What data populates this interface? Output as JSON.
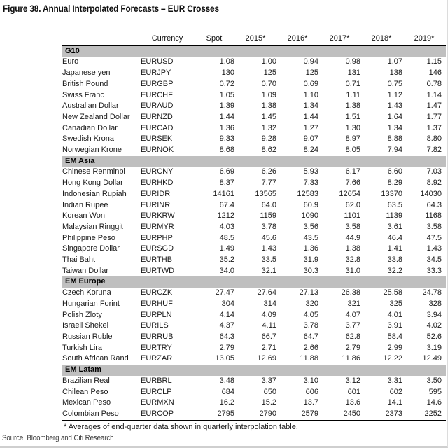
{
  "figure": {
    "title": "Figure 38. Annual Interpolated Forecasts – EUR Crosses",
    "footnote": "* Averages of end-quarter data shown in quarterly interpolation table.",
    "source": "Source: Bloomberg and Citi Research"
  },
  "colors": {
    "section_band": "#bfbfbf",
    "rule": "#000000",
    "text": "#1a1a1a",
    "page_edge": "#d4d4d4"
  },
  "table": {
    "columns": [
      "",
      "Currency",
      "Spot",
      "2015*",
      "2016*",
      "2017*",
      "2018*",
      "2019*"
    ],
    "sections": [
      {
        "label": "G10",
        "rows": [
          [
            "Euro",
            "EURUSD",
            "1.08",
            "1.00",
            "0.94",
            "0.98",
            "1.07",
            "1.15"
          ],
          [
            "Japanese yen",
            "EURJPY",
            "130",
            "125",
            "125",
            "131",
            "138",
            "146"
          ],
          [
            "British Pound",
            "EURGBP",
            "0.72",
            "0.70",
            "0.69",
            "0.71",
            "0.75",
            "0.78"
          ],
          [
            "Swiss Franc",
            "EURCHF",
            "1.05",
            "1.09",
            "1.10",
            "1.11",
            "1.12",
            "1.14"
          ],
          [
            "Australian Dollar",
            "EURAUD",
            "1.39",
            "1.38",
            "1.34",
            "1.38",
            "1.43",
            "1.47"
          ],
          [
            "New Zealand Dollar",
            "EURNZD",
            "1.44",
            "1.45",
            "1.44",
            "1.51",
            "1.64",
            "1.77"
          ],
          [
            "Canadian Dollar",
            "EURCAD",
            "1.36",
            "1.32",
            "1.27",
            "1.30",
            "1.34",
            "1.37"
          ],
          [
            "Swedish Krona",
            "EURSEK",
            "9.33",
            "9.28",
            "9.07",
            "8.97",
            "8.88",
            "8.80"
          ],
          [
            "Norwegian Krone",
            "EURNOK",
            "8.68",
            "8.62",
            "8.24",
            "8.05",
            "7.94",
            "7.82"
          ]
        ]
      },
      {
        "label": "EM Asia",
        "rows": [
          [
            "Chinese Renminbi",
            "EURCNY",
            "6.69",
            "6.26",
            "5.93",
            "6.17",
            "6.60",
            "7.03"
          ],
          [
            "Hong Kong Dollar",
            "EURHKD",
            "8.37",
            "7.77",
            "7.33",
            "7.66",
            "8.29",
            "8.92"
          ],
          [
            "Indonesian Rupiah",
            "EURIDR",
            "14161",
            "13565",
            "12583",
            "12654",
            "13370",
            "14030"
          ],
          [
            "Indian Rupee",
            "EURINR",
            "67.4",
            "64.0",
            "60.9",
            "62.0",
            "63.5",
            "64.3"
          ],
          [
            "Korean Won",
            "EURKRW",
            "1212",
            "1159",
            "1090",
            "1101",
            "1139",
            "1168"
          ],
          [
            "Malaysian Ringgit",
            "EURMYR",
            "4.03",
            "3.78",
            "3.56",
            "3.58",
            "3.61",
            "3.58"
          ],
          [
            "Philippine Peso",
            "EURPHP",
            "48.5",
            "45.6",
            "43.5",
            "44.9",
            "46.4",
            "47.5"
          ],
          [
            "Singapore Dollar",
            "EURSGD",
            "1.49",
            "1.43",
            "1.36",
            "1.38",
            "1.41",
            "1.43"
          ],
          [
            "Thai Baht",
            "EURTHB",
            "35.2",
            "33.5",
            "31.9",
            "32.8",
            "33.8",
            "34.5"
          ],
          [
            "Taiwan Dollar",
            "EURTWD",
            "34.0",
            "32.1",
            "30.3",
            "31.0",
            "32.2",
            "33.3"
          ]
        ]
      },
      {
        "label": "EM Europe",
        "rows": [
          [
            "Czech Koruna",
            "EURCZK",
            "27.47",
            "27.64",
            "27.13",
            "26.38",
            "25.58",
            "24.78"
          ],
          [
            "Hungarian Forint",
            "EURHUF",
            "304",
            "314",
            "320",
            "321",
            "325",
            "328"
          ],
          [
            "Polish Zloty",
            "EURPLN",
            "4.14",
            "4.09",
            "4.05",
            "4.07",
            "4.01",
            "3.94"
          ],
          [
            "Israeli Shekel",
            "EURILS",
            "4.37",
            "4.11",
            "3.78",
            "3.77",
            "3.91",
            "4.02"
          ],
          [
            "Russian Ruble",
            "EURRUB",
            "64.3",
            "66.7",
            "64.7",
            "62.8",
            "58.4",
            "52.6"
          ],
          [
            "Turkish Lira",
            "EURTRY",
            "2.79",
            "2.71",
            "2.66",
            "2.79",
            "2.99",
            "3.19"
          ],
          [
            "South African Rand",
            "EURZAR",
            "13.05",
            "12.69",
            "11.88",
            "11.86",
            "12.22",
            "12.49"
          ]
        ]
      },
      {
        "label": "EM Latam",
        "rows": [
          [
            "Brazilian Real",
            "EURBRL",
            "3.48",
            "3.37",
            "3.10",
            "3.12",
            "3.31",
            "3.50"
          ],
          [
            "Chilean Peso",
            "EURCLP",
            "684",
            "650",
            "606",
            "601",
            "602",
            "595"
          ],
          [
            "Mexican Peso",
            "EURMXN",
            "16.2",
            "15.2",
            "13.7",
            "13.6",
            "14.1",
            "14.6"
          ],
          [
            "Colombian Peso",
            "EURCOP",
            "2795",
            "2790",
            "2579",
            "2450",
            "2373",
            "2252"
          ]
        ]
      }
    ]
  }
}
